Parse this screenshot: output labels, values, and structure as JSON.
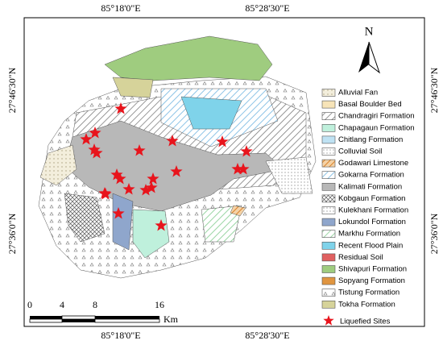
{
  "coordinates": {
    "top": [
      "85°18'0\"E",
      "85°28'30\"E"
    ],
    "bottom": [
      "85°18'0\"E",
      "85°28'30\"E"
    ],
    "left": [
      "27°46'30\"N",
      "27°36'0\"N"
    ],
    "right": [
      "27°46'30\"N",
      "27°36'0\"N"
    ]
  },
  "north_arrow": "N",
  "legend": {
    "items": [
      "Alluvial Fan",
      "Basal Boulder Bed",
      "Chandragiri Formation",
      "Chapagaun Formation",
      "Chitlang Formation",
      "Colluvial Soil",
      "Godawari Limestone",
      "Gokarna Formation",
      "Kalimati Formation",
      "Kobgaun Formation",
      "Kulekhani Formation",
      "Lokundol Formation",
      "Markhu Formation",
      "Recent Flood Plain",
      "Residual Soil",
      "Shivapuri Formation",
      "Sopyang Formation",
      "Tistung Formation",
      "Tokha Formation"
    ],
    "sites": "Liquefied Sites"
  },
  "scale_bar": {
    "ticks": [
      "0",
      "4",
      "8",
      "16"
    ],
    "unit": "Km"
  }
}
